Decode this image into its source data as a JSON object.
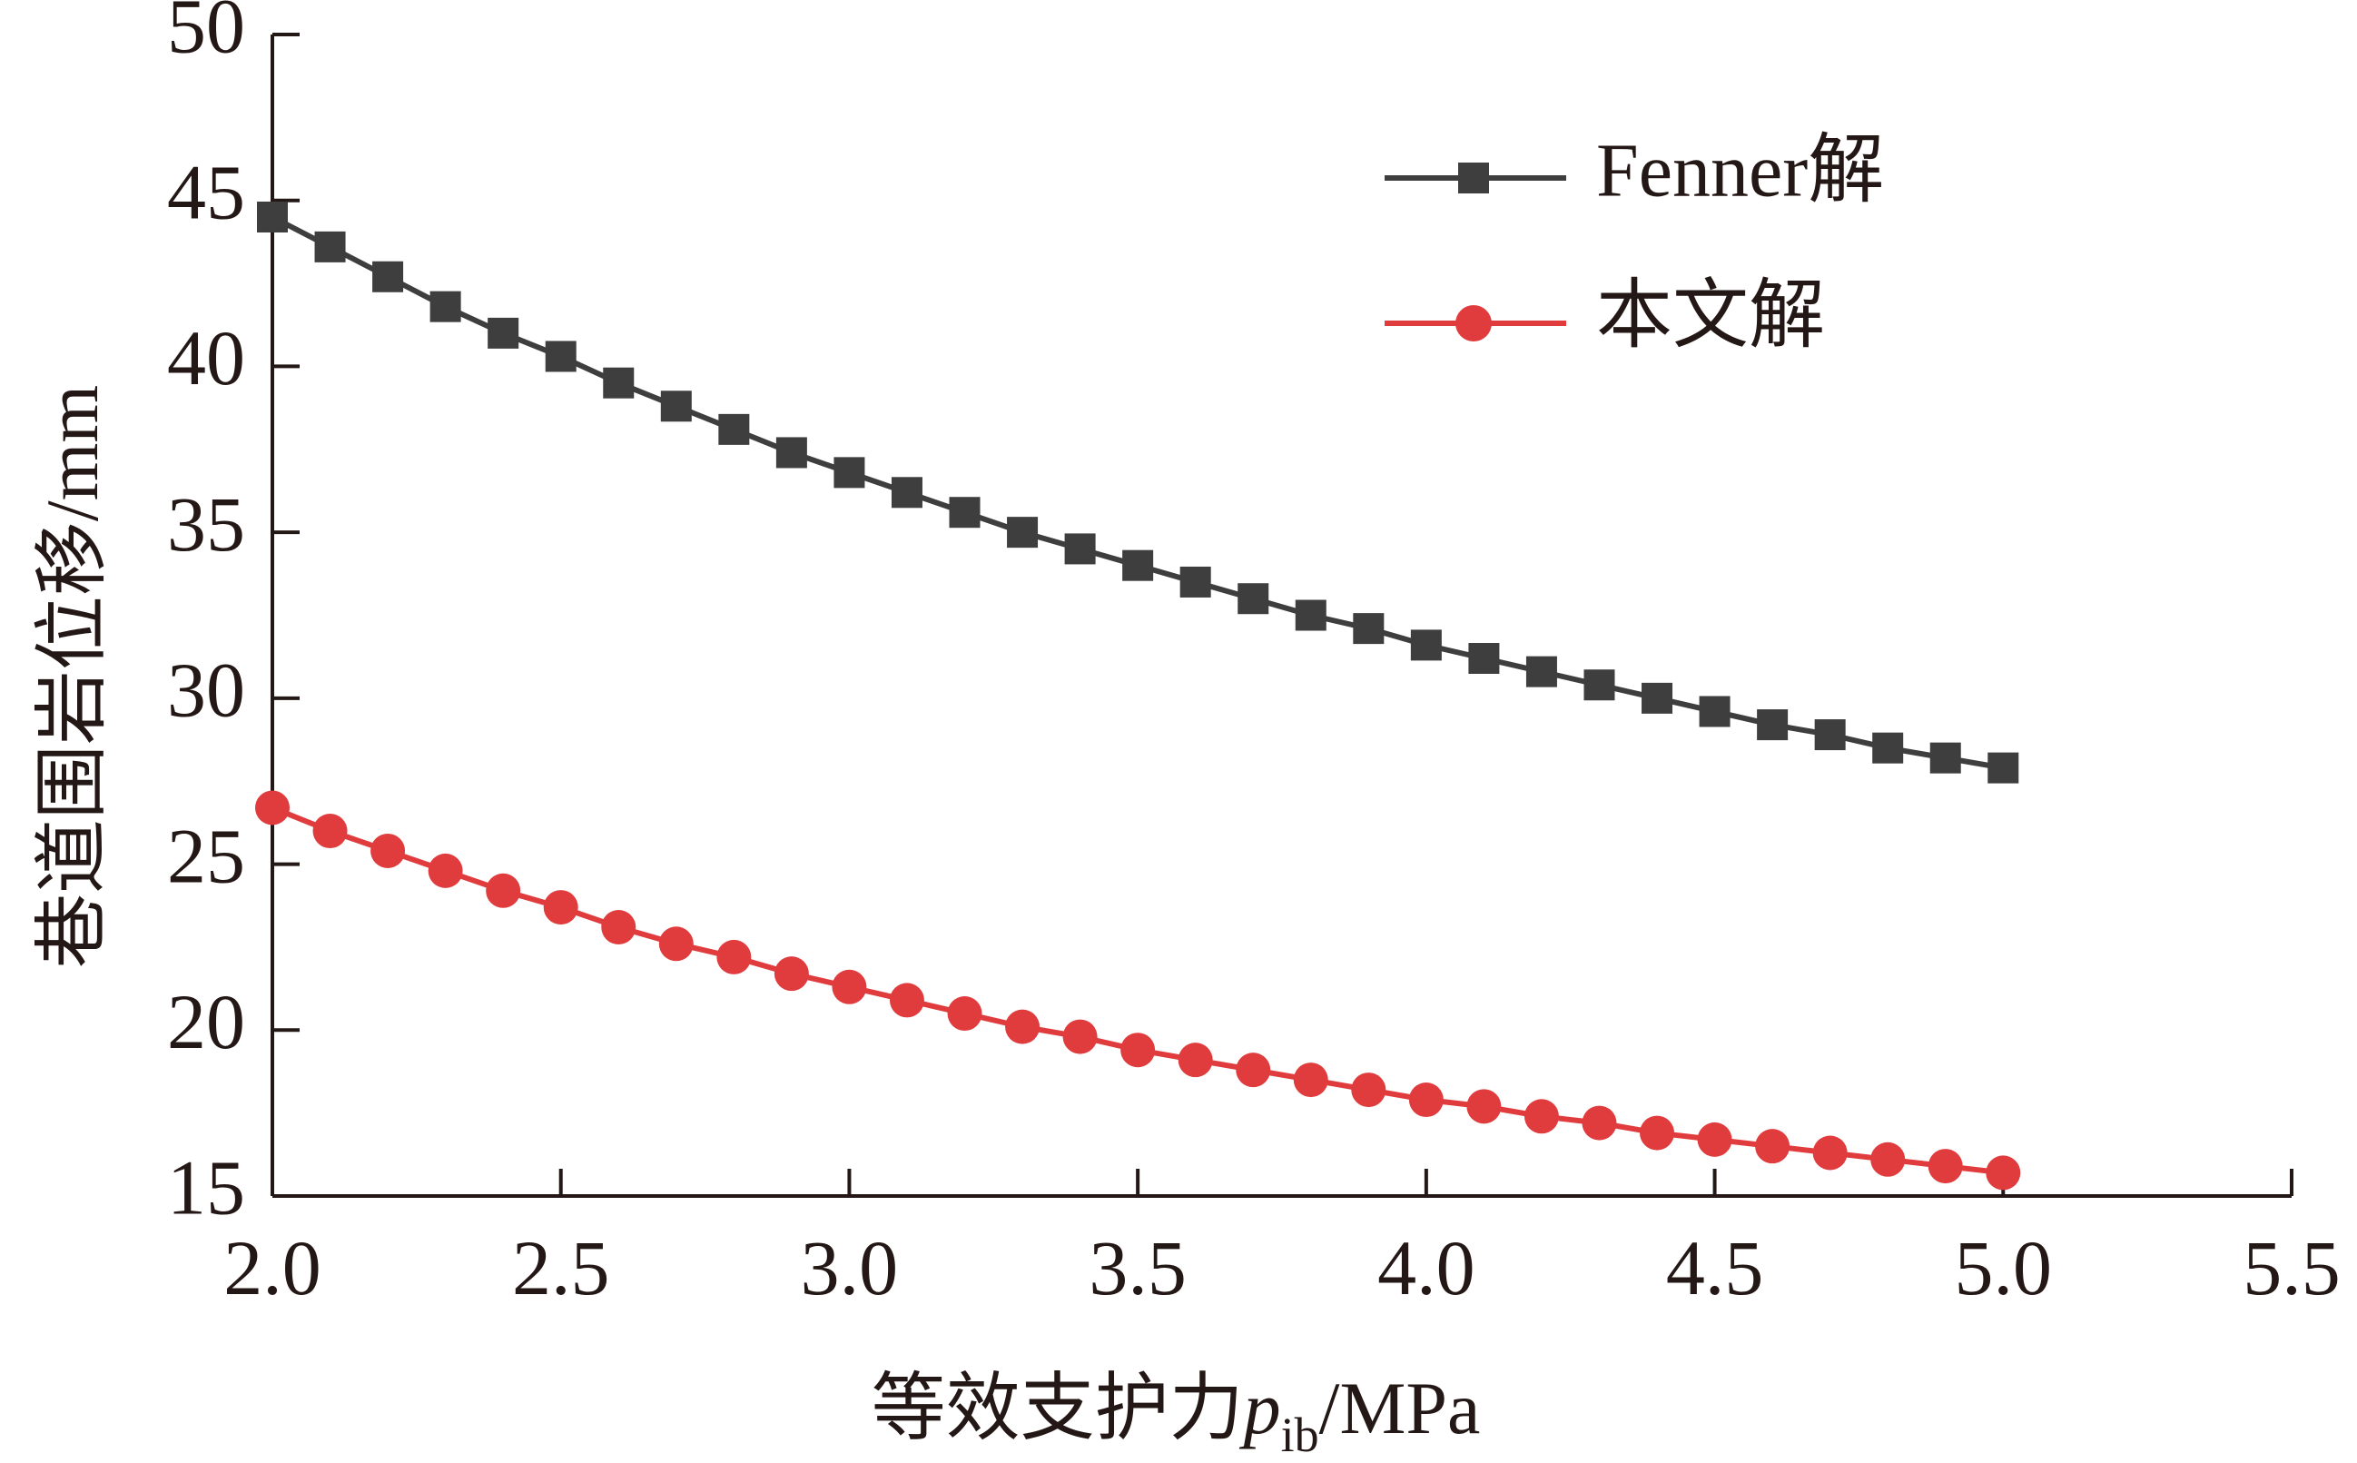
{
  "chart_data": {
    "type": "line",
    "xlabel": "等效支护力",
    "xlabel_symbol": "p",
    "xlabel_subscript": "ib",
    "xlabel_unit": "/MPa",
    "ylabel": "巷道围岩位移/mm",
    "xlim": [
      2.0,
      5.5
    ],
    "ylim": [
      15,
      50
    ],
    "xticks": [
      "2.0",
      "2.5",
      "3.0",
      "3.5",
      "4.0",
      "4.5",
      "5.0",
      "5.5"
    ],
    "yticks": [
      "15",
      "20",
      "25",
      "30",
      "35",
      "40",
      "45",
      "50"
    ],
    "grid": false,
    "legend_position": "top-right",
    "x": [
      2.0,
      2.1,
      2.2,
      2.3,
      2.4,
      2.5,
      2.6,
      2.7,
      2.8,
      2.9,
      3.0,
      3.1,
      3.2,
      3.3,
      3.4,
      3.5,
      3.6,
      3.7,
      3.8,
      3.9,
      4.0,
      4.1,
      4.2,
      4.3,
      4.4,
      4.5,
      4.6,
      4.7,
      4.8,
      4.9,
      5.0
    ],
    "series": [
      {
        "name": "Fenner解",
        "color": "#3e3e3e",
        "marker": "square",
        "values": [
          44.5,
          43.6,
          42.7,
          41.8,
          41.0,
          40.3,
          39.5,
          38.8,
          38.1,
          37.4,
          36.8,
          36.2,
          35.6,
          35.0,
          34.5,
          34.0,
          33.5,
          33.0,
          32.5,
          32.1,
          31.6,
          31.2,
          30.8,
          30.4,
          30.0,
          29.6,
          29.2,
          28.9,
          28.5,
          28.2,
          27.9
        ]
      },
      {
        "name": "本文解",
        "color": "#e03c3e",
        "marker": "circle",
        "values": [
          26.7,
          26.0,
          25.4,
          24.8,
          24.2,
          23.7,
          23.1,
          22.6,
          22.2,
          21.7,
          21.3,
          20.9,
          20.5,
          20.1,
          19.8,
          19.4,
          19.1,
          18.8,
          18.5,
          18.2,
          17.9,
          17.7,
          17.4,
          17.2,
          16.9,
          16.7,
          16.5,
          16.3,
          16.1,
          15.9,
          15.7
        ]
      }
    ]
  }
}
